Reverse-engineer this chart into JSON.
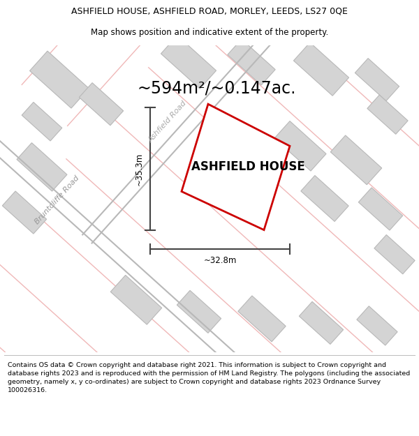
{
  "title_line1": "ASHFIELD HOUSE, ASHFIELD ROAD, MORLEY, LEEDS, LS27 0QE",
  "title_line2": "Map shows position and indicative extent of the property.",
  "area_text": "~594m²/~0.147ac.",
  "property_label": "ASHFIELD HOUSE",
  "dim_width": "~32.8m",
  "dim_height": "~35.3m",
  "road_label1": "Bruntcliffe Road",
  "road_label2": "Ashfield Road",
  "footer_text": "Contains OS data © Crown copyright and database right 2021. This information is subject to Crown copyright and database rights 2023 and is reproduced with the permission of HM Land Registry. The polygons (including the associated geometry, namely x, y co-ordinates) are subject to Crown copyright and database rights 2023 Ordnance Survey 100026316.",
  "bg_color": "#f0efed",
  "property_fill": "#ffffff",
  "property_edge": "#cc0000",
  "building_fill": "#d4d4d4",
  "building_edge": "#b8b8b8",
  "road_line_color": "#f0b8b8",
  "road_gray_color": "#b8b8b8",
  "dim_line_color": "#444444",
  "title_fontsize": 9.0,
  "subtitle_fontsize": 8.5,
  "area_fontsize": 17,
  "label_fontsize": 12,
  "road_label_fontsize": 8.0,
  "footer_fontsize": 6.8
}
